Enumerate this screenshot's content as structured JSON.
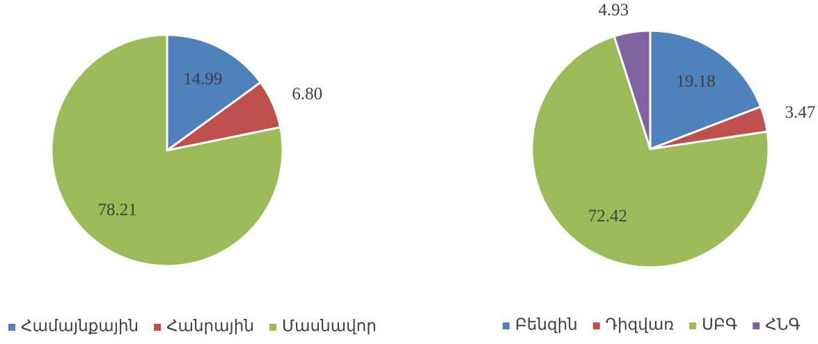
{
  "chart_data": [
    {
      "type": "pie",
      "categories": [
        "Համայնքային",
        "Հանրային",
        "Մասնավոր"
      ],
      "values": [
        14.99,
        6.8,
        78.21
      ],
      "value_labels": [
        "14.99",
        "6.80",
        "78.21"
      ],
      "colors": [
        "#4f81bd",
        "#c0504d",
        "#9bbb59"
      ],
      "legend": "bottom"
    },
    {
      "type": "pie",
      "categories": [
        "Բենզին",
        "Դիզվառ",
        "ՍԲԳ",
        "ՀՆԳ"
      ],
      "values": [
        19.18,
        3.47,
        72.42,
        4.93
      ],
      "value_labels": [
        "19.18",
        "3.47",
        "72.42",
        "4.93"
      ],
      "colors": [
        "#4f81bd",
        "#c0504d",
        "#9bbb59",
        "#8064a2"
      ],
      "legend": "bottom"
    }
  ]
}
